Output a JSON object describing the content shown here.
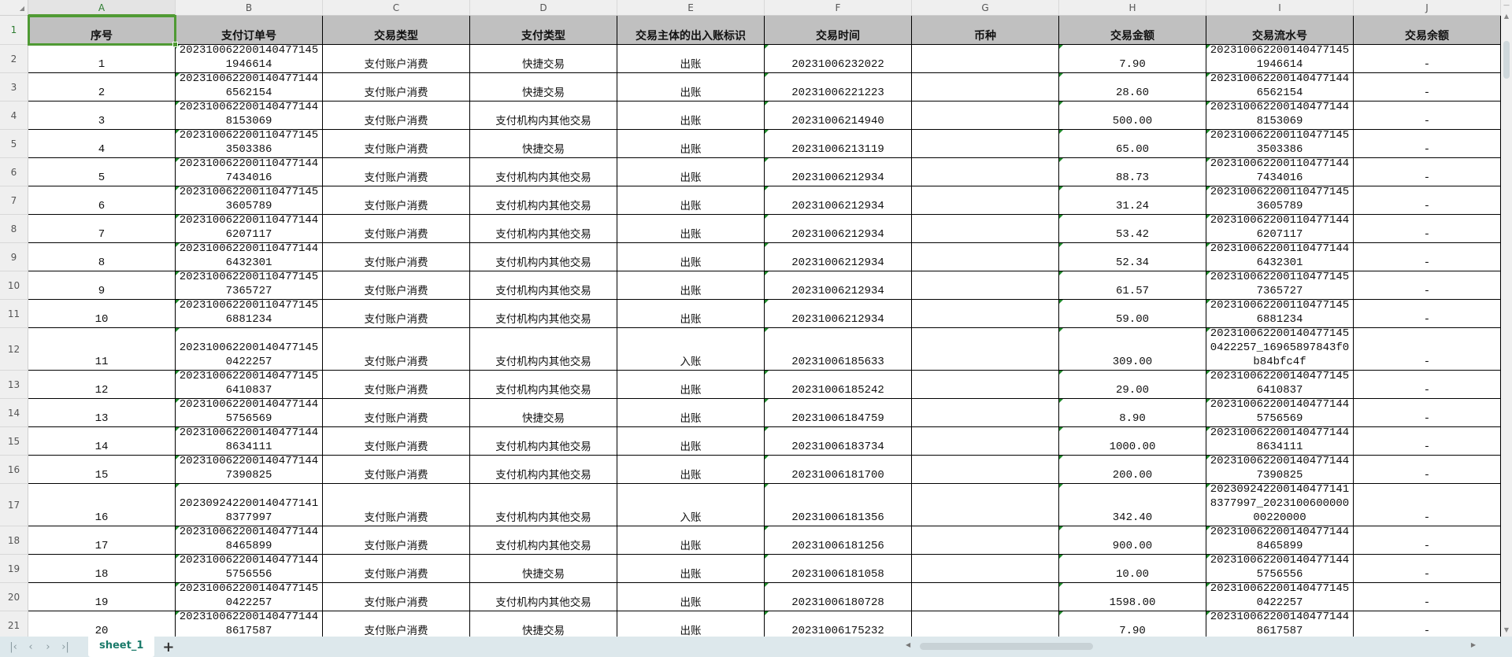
{
  "columns": [
    "A",
    "B",
    "C",
    "D",
    "E",
    "F",
    "G",
    "H",
    "I",
    "J"
  ],
  "header": [
    "序号",
    "支付订单号",
    "交易类型",
    "支付类型",
    "交易主体的出入账标识",
    "交易时间",
    "币种",
    "交易金额",
    "交易流水号",
    "交易余额"
  ],
  "rows": [
    [
      "1",
      "20231006220014047714519466​14",
      "支付账户消费",
      "快捷交易",
      "出账",
      "20231006232022",
      "",
      "7.90",
      "202310062200140477145194661​4",
      "-"
    ],
    [
      "2",
      "2023100622001404771446562154",
      "支付账户消费",
      "快捷交易",
      "出账",
      "20231006221223",
      "",
      "28.60",
      "2023100622001404771446562154",
      "-"
    ],
    [
      "3",
      "2023100622001404771448153069",
      "支付账户消费",
      "支付机构内其他交易",
      "出账",
      "20231006214940",
      "",
      "500.00",
      "2023100622001404771448153069",
      "-"
    ],
    [
      "4",
      "2023100622001104771453503386",
      "支付账户消费",
      "快捷交易",
      "出账",
      "20231006213119",
      "",
      "65.00",
      "2023100622001104771453503386",
      "-"
    ],
    [
      "5",
      "2023100622001104771447434016",
      "支付账户消费",
      "支付机构内其他交易",
      "出账",
      "20231006212934",
      "",
      "88.73",
      "2023100622001104771447434016",
      "-"
    ],
    [
      "6",
      "2023100622001104771453605789",
      "支付账户消费",
      "支付机构内其他交易",
      "出账",
      "20231006212934",
      "",
      "31.24",
      "2023100622001104771453605789",
      "-"
    ],
    [
      "7",
      "2023100622001104771446207117",
      "支付账户消费",
      "支付机构内其他交易",
      "出账",
      "20231006212934",
      "",
      "53.42",
      "2023100622001104771446207117",
      "-"
    ],
    [
      "8",
      "2023100622001104771446432301",
      "支付账户消费",
      "支付机构内其他交易",
      "出账",
      "20231006212934",
      "",
      "52.34",
      "2023100622001104771446432301",
      "-"
    ],
    [
      "9",
      "2023100622001104771457365727",
      "支付账户消费",
      "支付机构内其他交易",
      "出账",
      "20231006212934",
      "",
      "61.57",
      "2023100622001104771457365727",
      "-"
    ],
    [
      "10",
      "2023100622001104771456881234",
      "支付账户消费",
      "支付机构内其他交易",
      "出账",
      "20231006212934",
      "",
      "59.00",
      "2023100622001104771456881234",
      "-"
    ],
    [
      "11",
      "2023100622001404771450422257",
      "支付账户消费",
      "支付机构内其他交易",
      "入账",
      "20231006185633",
      "",
      "309.00",
      "2023100622001404771450422257_16965897843f0b84bfc4f",
      "-"
    ],
    [
      "12",
      "2023100622001404771456410837",
      "支付账户消费",
      "支付机构内其他交易",
      "出账",
      "20231006185242",
      "",
      "29.00",
      "2023100622001404771456410837",
      "-"
    ],
    [
      "13",
      "2023100622001404771445756569",
      "支付账户消费",
      "快捷交易",
      "出账",
      "20231006184759",
      "",
      "8.90",
      "2023100622001404771445756569",
      "-"
    ],
    [
      "14",
      "2023100622001404771448634111",
      "支付账户消费",
      "支付机构内其他交易",
      "出账",
      "20231006183734",
      "",
      "1000.00",
      "2023100622001404771448634111",
      "-"
    ],
    [
      "15",
      "2023100622001404771447390825",
      "支付账户消费",
      "支付机构内其他交易",
      "出账",
      "20231006181700",
      "",
      "200.00",
      "2023100622001404771447390825",
      "-"
    ],
    [
      "16",
      "2023092422001404771418377997",
      "支付账户消费",
      "支付机构内其他交易",
      "入账",
      "20231006181356",
      "",
      "342.40",
      "2023092422001404771418377997_202310060000000220000",
      "-"
    ],
    [
      "17",
      "2023100622001404771448465899",
      "支付账户消费",
      "支付机构内其他交易",
      "出账",
      "20231006181256",
      "",
      "900.00",
      "2023100622001404771448465899",
      "-"
    ],
    [
      "18",
      "2023100622001404771445756556",
      "支付账户消费",
      "快捷交易",
      "出账",
      "20231006181058",
      "",
      "10.00",
      "2023100622001404771445756556",
      "-"
    ],
    [
      "19",
      "2023100622001404771450422257",
      "支付账户消费",
      "支付机构内其他交易",
      "出账",
      "20231006180728",
      "",
      "1598.00",
      "2023100622001404771450422257",
      "-"
    ],
    [
      "20",
      "2023100622001404771448617587",
      "支付账户消费",
      "快捷交易",
      "出账",
      "20231006175232",
      "",
      "7.90",
      "2023100622001404771448617587",
      "-"
    ]
  ],
  "selected_cell": "A1",
  "sheet_tabs": [
    {
      "label": "sheet_1",
      "active": true
    }
  ],
  "add_sheet_label": "+",
  "nav_icons": [
    "first-sheet-icon",
    "prev-sheet-icon",
    "next-sheet-icon",
    "last-sheet-icon"
  ],
  "colors": {
    "selection": "#4f9a34",
    "header_fill": "#c0c0c0",
    "tab_text": "#1a7a6a"
  }
}
